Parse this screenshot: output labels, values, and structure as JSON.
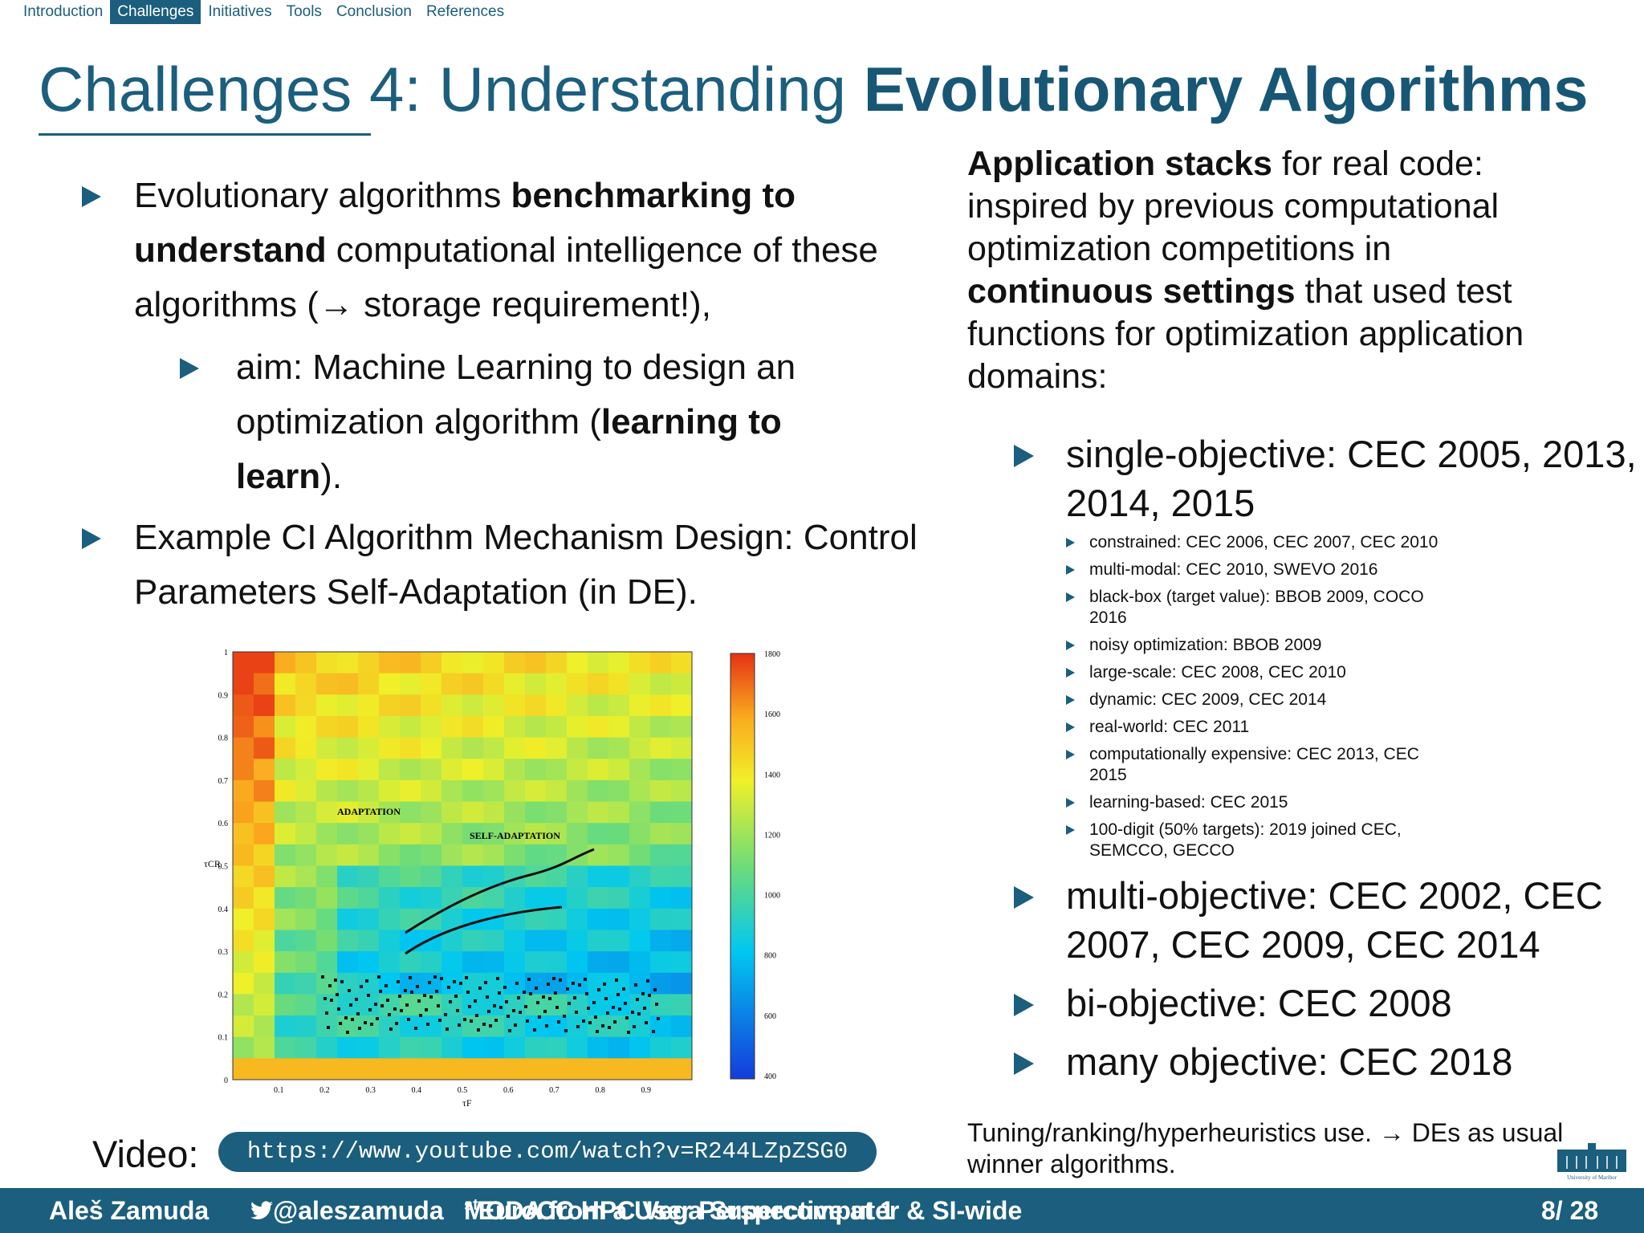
{
  "nav": {
    "items": [
      "Introduction",
      "Challenges",
      "Initiatives",
      "Tools",
      "Conclusion",
      "References"
    ],
    "active": 1
  },
  "title": [
    {
      "text": "Challenges 4: Understanding "
    },
    {
      "text": "Evolutionary Algorithms",
      "bold": true
    }
  ],
  "left": {
    "items": [
      {
        "text": [
          {
            "text": "Evolutionary algorithms "
          },
          {
            "text": "benchmarking to understand",
            "bold": true
          },
          {
            "text": " computational intelligence of these algorithms (→ storage requirement!),"
          }
        ],
        "sub": [
          [
            {
              "text": "aim: Machine Learning to design an optimization algorithm ("
            },
            {
              "text": "learning to learn",
              "bold": true
            },
            {
              "text": ")."
            }
          ]
        ]
      },
      {
        "text": [
          {
            "text": "Example CI Algorithm Mechanism Design: Control Parameters Self-Adaptation (in DE)."
          }
        ],
        "sub": []
      }
    ]
  },
  "figure": {
    "y_ticks": [
      "0",
      "0.1",
      "0.2",
      "0.3",
      "0.4",
      "0.5",
      "0.6",
      "0.7",
      "0.8",
      "0.9",
      "1"
    ],
    "x_ticks": [
      "0.1",
      "0.2",
      "0.3",
      "0.4",
      "0.5",
      "0.6",
      "0.7",
      "0.8",
      "0.9"
    ],
    "colorbar_ticks": [
      "1800",
      "1600",
      "1400",
      "1200",
      "1000",
      "800",
      "600",
      "400"
    ],
    "y_label": "τCR",
    "x_label": "τF",
    "adaptation": "ADAPTATION",
    "self_adaptation": "SELF-ADAPTATION"
  },
  "video": {
    "label": "Video:",
    "url": "https://www.youtube.com/watch?v=R244LZpZSG0"
  },
  "right": {
    "intro": [
      {
        "text": "Application stacks",
        "bold": true
      },
      {
        "text": " for real code: inspired by previous computational optimization competitions in "
      },
      {
        "text": "continuous settings",
        "bold": true
      },
      {
        "text": " that used test functions for optimization application domains:"
      }
    ],
    "items": [
      {
        "text": "single-objective: CEC 2005, 2013, 2014, 2015",
        "sub": [
          "constrained: CEC 2006, CEC 2007, CEC 2010",
          "multi-modal: CEC 2010, SWEVO 2016",
          "black-box (target value): BBOB 2009, COCO 2016",
          "noisy optimization: BBOB 2009",
          "large-scale: CEC 2008, CEC 2010",
          "dynamic: CEC 2009, CEC 2014",
          "real-world: CEC 2011",
          "computationally expensive: CEC 2013, CEC 2015",
          "learning-based: CEC 2015",
          "100-digit (50% targets): 2019 joined CEC, SEMCCO, GECCO"
        ]
      },
      {
        "text": "multi-objective: CEC 2002, CEC 2007, CEC 2009, CEC 2014",
        "sub": []
      },
      {
        "text": "bi-objective: CEC 2008",
        "sub": []
      },
      {
        "text": "many objective: CEC 2018",
        "sub": []
      }
    ],
    "note": "Tuning/ranking/hyperheuristics use. → DEs as usual winner algorithms."
  },
  "logo": "University of Maribor",
  "footer": {
    "author": "Aleš Zamuda",
    "handle": "@aleszamuda",
    "event": [
      {
        "text": "MODA from a User Perspective at 1"
      },
      {
        "text": "st",
        "sup": true
      },
      {
        "text": " EuroCC HPC Vega Supercomputer & SI-wide"
      }
    ],
    "page": "8/ 28"
  }
}
